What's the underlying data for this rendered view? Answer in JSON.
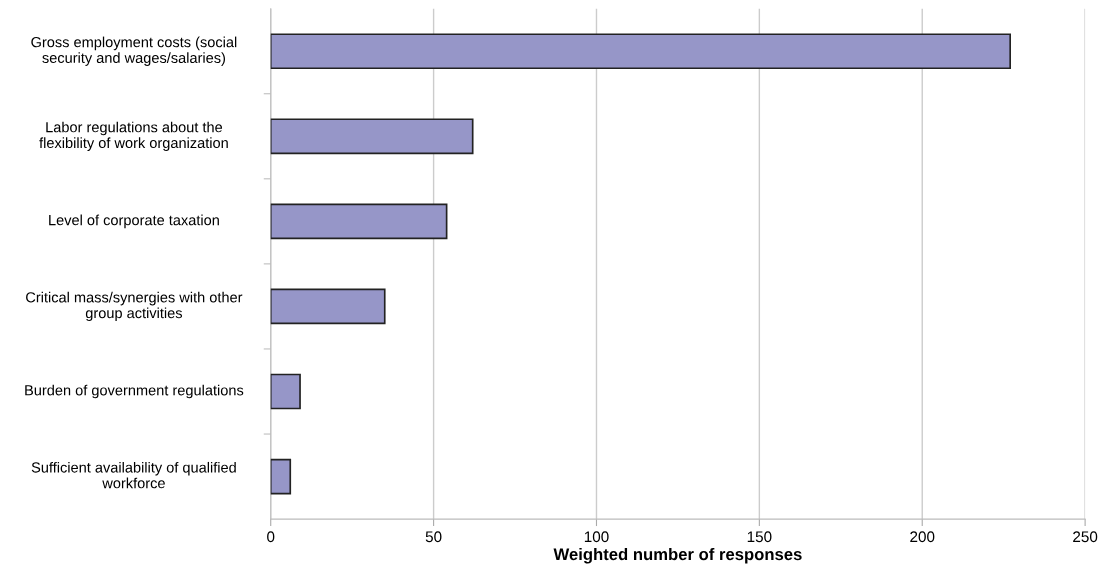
{
  "chart_data": {
    "type": "bar",
    "orientation": "horizontal",
    "categories": [
      "Gross employment costs (social\nsecurity and wages/salaries)",
      "Labor regulations about the\nflexibility of work organization",
      "Level of corporate taxation",
      "Critical mass/synergies with other\ngroup activities",
      "Burden of government regulations",
      "Sufficient availability of qualified\nworkforce"
    ],
    "values": [
      227,
      62,
      54,
      35,
      9,
      6
    ],
    "color": "#9696c8",
    "xlabel": "Weighted number of responses",
    "xlim": [
      0,
      250
    ],
    "xticks": [
      0,
      50,
      100,
      150,
      200,
      250
    ],
    "grid": "x",
    "legend": false
  }
}
